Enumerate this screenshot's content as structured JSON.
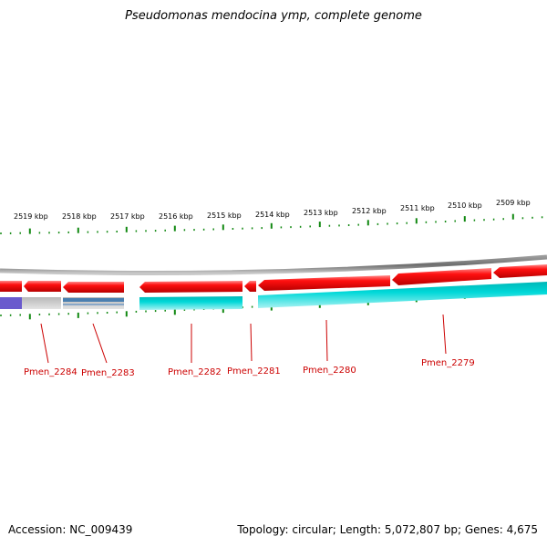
{
  "title": "Pseudomonas mendocina ymp, complete genome",
  "footer": {
    "accession": "Accession: NC_009439",
    "summary": "Topology: circular; Length: 5,072,807 bp; Genes: 4,675"
  },
  "colors": {
    "forward_gene": "#ff0000",
    "reverse_feature": "#00cccc",
    "backbone": "#888888",
    "tick": "#118811",
    "label": "#cc0000"
  },
  "ruler_labels": [
    "2519 kbp",
    "2518 kbp",
    "2517 kbp",
    "2516 kbp",
    "2515 kbp",
    "2514 kbp",
    "2513 kbp",
    "2512 kbp",
    "2511 kbp",
    "2510 kbp",
    "2509 kbp"
  ],
  "genes": [
    {
      "label": "Pmen_2284"
    },
    {
      "label": "Pmen_2283"
    },
    {
      "label": "Pmen_2282"
    },
    {
      "label": "Pmen_2281"
    },
    {
      "label": "Pmen_2280"
    },
    {
      "label": "Pmen_2279"
    }
  ]
}
